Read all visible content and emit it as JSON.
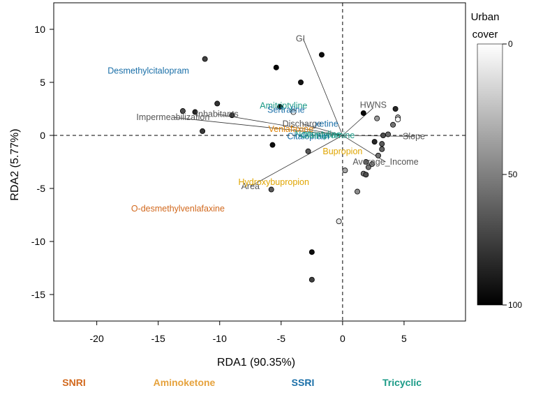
{
  "chart_data": {
    "type": "scatter",
    "xlabel": "RDA1 (90.35%)",
    "ylabel": "RDA2 (5.77%)",
    "xlim": [
      -23.5,
      10
    ],
    "ylim": [
      -17.5,
      12.5
    ],
    "xticks": [
      -20,
      -15,
      -10,
      -5,
      0,
      5
    ],
    "yticks": [
      10,
      5,
      0,
      -5,
      -10,
      -15
    ],
    "grid": false,
    "reference_lines": {
      "x": 0,
      "y": 0,
      "style": "dashed"
    },
    "colorbar": {
      "title_line1": "Urban",
      "title_line2": "cover",
      "ticks": [
        0,
        50,
        100
      ],
      "colors": {
        "low": "#ffffff",
        "high": "#000000"
      }
    },
    "sites": [
      {
        "x": -11.2,
        "y": 7.2,
        "urban": 75
      },
      {
        "x": -5.4,
        "y": 6.4,
        "urban": 98
      },
      {
        "x": -1.7,
        "y": 7.6,
        "urban": 95
      },
      {
        "x": -3.4,
        "y": 5.0,
        "urban": 92
      },
      {
        "x": -10.2,
        "y": 3.0,
        "urban": 80
      },
      {
        "x": -13.0,
        "y": 2.3,
        "urban": 70
      },
      {
        "x": -12.0,
        "y": 2.2,
        "urban": 85
      },
      {
        "x": -9.0,
        "y": 1.9,
        "urban": 82
      },
      {
        "x": -5.1,
        "y": 2.7,
        "urban": 95
      },
      {
        "x": -4.0,
        "y": 2.2,
        "urban": 5
      },
      {
        "x": -11.4,
        "y": 0.4,
        "urban": 78
      },
      {
        "x": -5.7,
        "y": -0.9,
        "urban": 95
      },
      {
        "x": -2.8,
        "y": -1.5,
        "urban": 65
      },
      {
        "x": -5.8,
        "y": -5.1,
        "urban": 65
      },
      {
        "x": 1.7,
        "y": 2.1,
        "urban": 97
      },
      {
        "x": 4.3,
        "y": 2.5,
        "urban": 85
      },
      {
        "x": 4.5,
        "y": 1.7,
        "urban": 30
      },
      {
        "x": 2.8,
        "y": 1.6,
        "urban": 40
      },
      {
        "x": 4.5,
        "y": 1.5,
        "urban": 3
      },
      {
        "x": 4.1,
        "y": 1.0,
        "urban": 55
      },
      {
        "x": 3.3,
        "y": 0.0,
        "urban": 70
      },
      {
        "x": 3.7,
        "y": 0.1,
        "urban": 60
      },
      {
        "x": 2.6,
        "y": -0.6,
        "urban": 85
      },
      {
        "x": 3.2,
        "y": -0.8,
        "urban": 65
      },
      {
        "x": 3.2,
        "y": -1.3,
        "urban": 60
      },
      {
        "x": 2.9,
        "y": -1.9,
        "urban": 55
      },
      {
        "x": 1.9,
        "y": -2.5,
        "urban": 60
      },
      {
        "x": 2.4,
        "y": -2.7,
        "urban": 50
      },
      {
        "x": 2.1,
        "y": -3.0,
        "urban": 55
      },
      {
        "x": 1.7,
        "y": -3.6,
        "urban": 55
      },
      {
        "x": 1.9,
        "y": -3.7,
        "urban": 70
      },
      {
        "x": 0.2,
        "y": -3.3,
        "urban": 35
      },
      {
        "x": 1.2,
        "y": -5.3,
        "urban": 45
      },
      {
        "x": -0.3,
        "y": -8.1,
        "urban": 10
      },
      {
        "x": -2.5,
        "y": -11.0,
        "urban": 95
      },
      {
        "x": -2.5,
        "y": -13.6,
        "urban": 75
      }
    ],
    "arrows": [
      {
        "name": "GI",
        "x": -3.2,
        "y": 9.1,
        "color": "#555555",
        "label_dx": -4,
        "label_dy": 0
      },
      {
        "name": "HWNS",
        "x": 2.5,
        "y": 2.6,
        "color": "#555555",
        "label_dx": 0,
        "label_dy": -4
      },
      {
        "name": "Impermeabilization",
        "x": -13.8,
        "y": 1.7,
        "color": "#555555",
        "label_dx": 0,
        "label_dy": 0
      },
      {
        "name": "Inhabitants",
        "x": -10.2,
        "y": 2.0,
        "color": "#555555",
        "label_dx": 0,
        "label_dy": 0
      },
      {
        "name": "Discharge",
        "x": -3.3,
        "y": 1.1,
        "color": "#555555",
        "label_dx": 0,
        "label_dy": 0
      },
      {
        "name": "Slope",
        "x": 5.8,
        "y": -0.1,
        "color": "#555555",
        "label_dx": 0,
        "label_dy": 0
      },
      {
        "name": "Average_Income",
        "x": 3.5,
        "y": -2.5,
        "color": "#555555",
        "label_dx": 0,
        "label_dy": 0
      },
      {
        "name": "Area",
        "x": -7.5,
        "y": -4.8,
        "color": "#555555",
        "label_dx": 0,
        "label_dy": 0
      }
    ],
    "species_labels": [
      {
        "text": "Desmethylcitalopram",
        "x": -15.8,
        "y": 6.1,
        "color": "#1a6fa8"
      },
      {
        "text": "Amitriptyline",
        "x": -4.8,
        "y": 2.8,
        "color": "#1a9a86"
      },
      {
        "text": "Sertraline",
        "x": -4.6,
        "y": 2.4,
        "color": "#1a6fa8"
      },
      {
        "text": "xetine",
        "x": -1.3,
        "y": 1.1,
        "color": "#1a6fa8"
      },
      {
        "text": "Venlafaxine",
        "x": -4.2,
        "y": 0.6,
        "color": "#e0850a"
      },
      {
        "text": "Nortriptyline",
        "x": -2.0,
        "y": 0.1,
        "color": "#1a9a86"
      },
      {
        "text": "Citalopram",
        "x": -2.8,
        "y": -0.1,
        "color": "#1a6fa8"
      },
      {
        "text": "Clomipramine",
        "x": -1.2,
        "y": 0.0,
        "color": "#1a9a86"
      },
      {
        "text": "Bupropion",
        "x": 0.0,
        "y": -1.5,
        "color": "#e0a500"
      },
      {
        "text": "Hydroxybupropion",
        "x": -5.6,
        "y": -4.4,
        "color": "#e0a500"
      },
      {
        "text": "O-desmethylvenlafaxine",
        "x": -13.4,
        "y": -6.9,
        "color": "#d2691e"
      }
    ],
    "classes": [
      {
        "name": "SNRI",
        "color": "#d2691e"
      },
      {
        "name": "Aminoketone",
        "color": "#e6a23c"
      },
      {
        "name": "SSRI",
        "color": "#1a6fa8"
      },
      {
        "name": "Tricyclic",
        "color": "#1a9a86"
      }
    ]
  }
}
